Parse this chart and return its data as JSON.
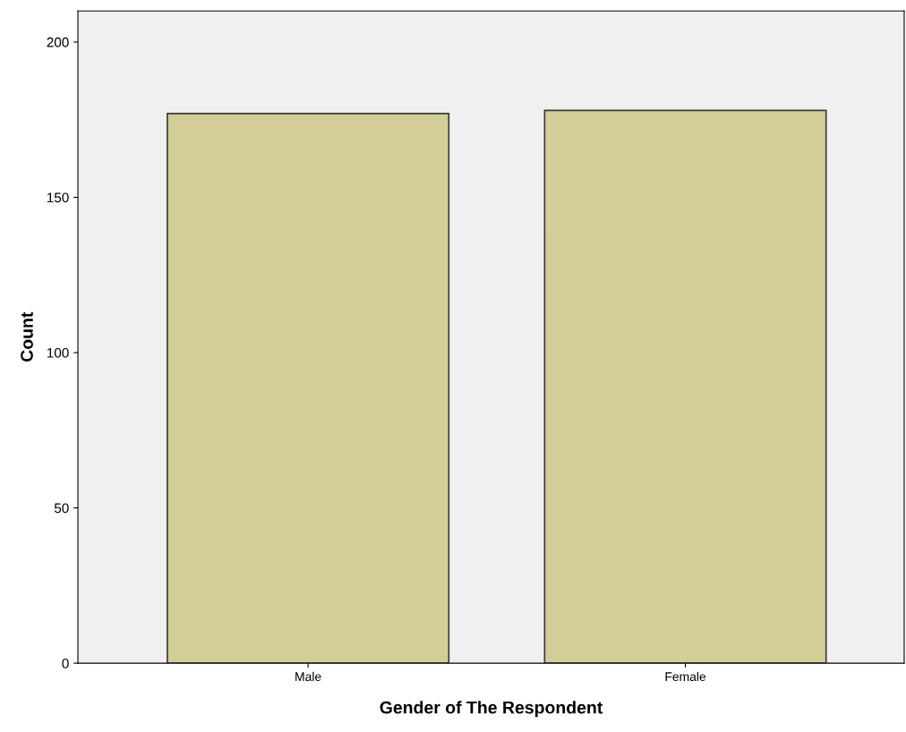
{
  "chart_data": {
    "type": "bar",
    "xlabel": "Gender of The Respondent",
    "ylabel": "Count",
    "categories": [
      "Male",
      "Female"
    ],
    "values": [
      177,
      178
    ],
    "color": "#d3ce97",
    "ylim": [
      0,
      210
    ],
    "yticks": [
      0,
      50,
      100,
      150,
      200
    ],
    "grid": false
  }
}
